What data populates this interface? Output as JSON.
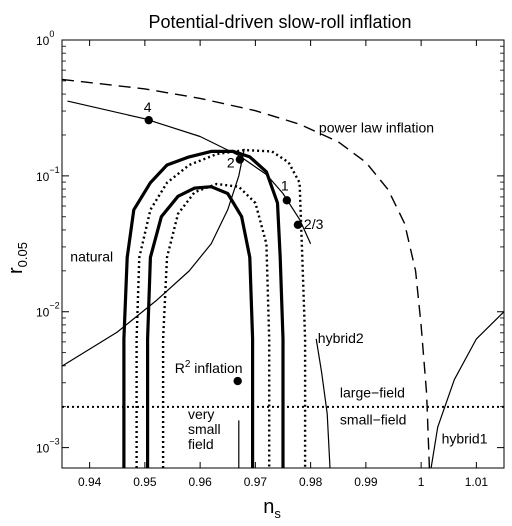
{
  "chart_data": {
    "type": "line",
    "title": "Potential-driven slow-roll inflation",
    "xlabel": "n",
    "xlabel_sub": "s",
    "ylabel": "r",
    "ylabel_sub": "0.05",
    "xlim": [
      0.935,
      1.015
    ],
    "ylim_log10": [
      -3.15,
      0
    ],
    "y_log_scale": true,
    "grid": false,
    "x_ticks": [
      {
        "value": 0.94,
        "label": "0.94"
      },
      {
        "value": 0.95,
        "label": "0.95"
      },
      {
        "value": 0.96,
        "label": "0.96"
      },
      {
        "value": 0.97,
        "label": "0.97"
      },
      {
        "value": 0.98,
        "label": "0.98"
      },
      {
        "value": 0.99,
        "label": "0.99"
      },
      {
        "value": 1.0,
        "label": "1"
      },
      {
        "value": 1.01,
        "label": "1.01"
      }
    ],
    "y_ticks": [
      {
        "exp": -3,
        "base": "10",
        "sup": "−3"
      },
      {
        "exp": -2,
        "base": "10",
        "sup": "−2"
      },
      {
        "exp": -1,
        "base": "10",
        "sup": "−1"
      },
      {
        "exp": 0,
        "base": "10",
        "sup": "0"
      }
    ],
    "curves": [
      {
        "id": "power-law",
        "style": "dashed",
        "points": [
          [
            0.935,
            -0.29
          ],
          [
            0.95,
            -0.36
          ],
          [
            0.96,
            -0.43
          ],
          [
            0.97,
            -0.52
          ],
          [
            0.978,
            -0.62
          ],
          [
            0.985,
            -0.75
          ],
          [
            0.99,
            -0.9
          ],
          [
            0.994,
            -1.1
          ],
          [
            0.997,
            -1.35
          ],
          [
            0.999,
            -1.7
          ],
          [
            1.0,
            -2.1
          ],
          [
            1.001,
            -2.6
          ],
          [
            1.0015,
            -3.15
          ]
        ]
      },
      {
        "id": "natural",
        "style": "solid-thin",
        "points": [
          [
            0.935,
            -2.4
          ],
          [
            0.945,
            -2.15
          ],
          [
            0.952,
            -1.92
          ],
          [
            0.958,
            -1.7
          ],
          [
            0.962,
            -1.5
          ],
          [
            0.965,
            -1.25
          ],
          [
            0.967,
            -1.0
          ],
          [
            0.968,
            -0.8
          ]
        ]
      },
      {
        "id": "monomial",
        "style": "solid-thin",
        "points": [
          [
            0.936,
            -0.45
          ],
          [
            0.95,
            -0.58
          ],
          [
            0.96,
            -0.71
          ],
          [
            0.967,
            -0.85
          ],
          [
            0.972,
            -0.99
          ],
          [
            0.975,
            -1.13
          ],
          [
            0.978,
            -1.32
          ],
          [
            0.98,
            -1.5
          ]
        ]
      },
      {
        "id": "hybrid1",
        "style": "solid-thin",
        "points": [
          [
            1.0018,
            -3.15
          ],
          [
            1.003,
            -2.85
          ],
          [
            1.006,
            -2.5
          ],
          [
            1.01,
            -2.2
          ],
          [
            1.015,
            -2.0
          ]
        ]
      },
      {
        "id": "hybrid2",
        "style": "solid-thin",
        "points": [
          [
            0.981,
            -2.2
          ],
          [
            0.982,
            -2.45
          ],
          [
            0.983,
            -2.75
          ],
          [
            0.9835,
            -3.15
          ]
        ]
      },
      {
        "id": "very-small-field",
        "style": "solid-thin",
        "points": [
          [
            0.967,
            -2.8
          ],
          [
            0.967,
            -3.15
          ]
        ]
      },
      {
        "id": "large-small-divide",
        "style": "dotted",
        "points": [
          [
            0.935,
            -2.7
          ],
          [
            1.015,
            -2.7
          ]
        ]
      },
      {
        "id": "contour-68",
        "style": "solid-thick",
        "points": [
          [
            0.9505,
            -3.15
          ],
          [
            0.9505,
            -2.2
          ],
          [
            0.951,
            -1.6
          ],
          [
            0.953,
            -1.3
          ],
          [
            0.956,
            -1.15
          ],
          [
            0.959,
            -1.09
          ],
          [
            0.962,
            -1.08
          ],
          [
            0.965,
            -1.13
          ],
          [
            0.9675,
            -1.3
          ],
          [
            0.969,
            -1.6
          ],
          [
            0.9695,
            -2.2
          ],
          [
            0.9695,
            -3.15
          ]
        ]
      },
      {
        "id": "contour-95",
        "style": "solid-thick",
        "points": [
          [
            0.9462,
            -3.15
          ],
          [
            0.9462,
            -2.2
          ],
          [
            0.9468,
            -1.6
          ],
          [
            0.948,
            -1.25
          ],
          [
            0.951,
            -1.05
          ],
          [
            0.954,
            -0.92
          ],
          [
            0.958,
            -0.86
          ],
          [
            0.962,
            -0.82
          ],
          [
            0.966,
            -0.82
          ],
          [
            0.969,
            -0.86
          ],
          [
            0.972,
            -0.97
          ],
          [
            0.974,
            -1.2
          ],
          [
            0.9745,
            -1.6
          ],
          [
            0.975,
            -2.2
          ],
          [
            0.975,
            -3.15
          ]
        ]
      },
      {
        "id": "contour-68-dotted",
        "style": "dotted-thick",
        "points": [
          [
            0.9533,
            -3.15
          ],
          [
            0.9533,
            -2.2
          ],
          [
            0.954,
            -1.6
          ],
          [
            0.956,
            -1.28
          ],
          [
            0.959,
            -1.12
          ],
          [
            0.963,
            -1.06
          ],
          [
            0.967,
            -1.08
          ],
          [
            0.97,
            -1.2
          ],
          [
            0.972,
            -1.5
          ],
          [
            0.9725,
            -2.2
          ],
          [
            0.9725,
            -3.15
          ]
        ]
      },
      {
        "id": "contour-95-dotted",
        "style": "dotted-thick",
        "points": [
          [
            0.9485,
            -3.15
          ],
          [
            0.9485,
            -2.2
          ],
          [
            0.949,
            -1.6
          ],
          [
            0.951,
            -1.25
          ],
          [
            0.954,
            -1.05
          ],
          [
            0.958,
            -0.92
          ],
          [
            0.963,
            -0.84
          ],
          [
            0.968,
            -0.81
          ],
          [
            0.973,
            -0.82
          ],
          [
            0.976,
            -0.9
          ],
          [
            0.978,
            -1.05
          ],
          [
            0.9785,
            -1.6
          ],
          [
            0.979,
            -2.2
          ],
          [
            0.979,
            -3.15
          ]
        ]
      }
    ],
    "points": [
      {
        "x": 0.9507,
        "y_log10": -0.59,
        "label": "4"
      },
      {
        "x": 0.9672,
        "y_log10": -0.88,
        "label": "2"
      },
      {
        "x": 0.9757,
        "y_log10": -1.18,
        "label": "1"
      },
      {
        "x": 0.9777,
        "y_log10": -1.36,
        "label": "2/3"
      },
      {
        "x": 0.9668,
        "y_log10": -2.51,
        "label": "R²inflation",
        "label_main": "R",
        "label_sup": "2",
        "label_rest": " inflation"
      }
    ],
    "annotations": [
      {
        "id": "ann-power-law",
        "text": "power law inflation",
        "x": 0.9815,
        "y_log10": -0.68
      },
      {
        "id": "ann-natural",
        "text": "natural",
        "x": 0.9365,
        "y_log10": -1.63
      },
      {
        "id": "ann-hybrid2",
        "text": "hybrid2",
        "x": 0.9813,
        "y_log10": -2.23
      },
      {
        "id": "ann-large-field",
        "text": "large−field",
        "x": 0.9853,
        "y_log10": -2.63
      },
      {
        "id": "ann-small-field",
        "text": "small−field",
        "x": 0.9853,
        "y_log10": -2.83
      },
      {
        "id": "ann-hybrid1",
        "text": "hybrid1",
        "x": 1.0037,
        "y_log10": -2.97
      },
      {
        "id": "ann-very",
        "text": "very",
        "x": 0.9578,
        "y_log10": -2.79
      },
      {
        "id": "ann-small",
        "text": "small",
        "x": 0.9578,
        "y_log10": -2.9
      },
      {
        "id": "ann-field",
        "text": "field",
        "x": 0.9578,
        "y_log10": -3.01
      }
    ]
  }
}
